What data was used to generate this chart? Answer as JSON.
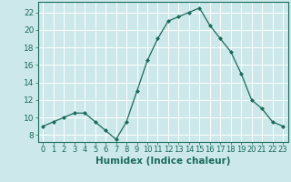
{
  "x": [
    0,
    1,
    2,
    3,
    4,
    5,
    6,
    7,
    8,
    9,
    10,
    11,
    12,
    13,
    14,
    15,
    16,
    17,
    18,
    19,
    20,
    21,
    22,
    23
  ],
  "y": [
    9,
    9.5,
    10,
    10.5,
    10.5,
    9.5,
    8.5,
    7.5,
    9.5,
    13,
    16.5,
    19,
    21,
    21.5,
    22,
    22.5,
    20.5,
    19,
    17.5,
    15,
    12,
    11,
    9.5,
    9
  ],
  "line_color": "#1a6b5a",
  "marker": "D",
  "marker_size": 2.0,
  "bg_color": "#cce8eb",
  "grid_color": "#ffffff",
  "xlabel": "Humidex (Indice chaleur)",
  "xlabel_fontsize": 7.5,
  "ylabel_ticks": [
    8,
    10,
    12,
    14,
    16,
    18,
    20,
    22
  ],
  "ylim": [
    7.2,
    23.2
  ],
  "xlim": [
    -0.5,
    23.5
  ],
  "xtick_fontsize": 6.0,
  "ytick_fontsize": 6.5,
  "tick_color": "#1a6b5a",
  "label_color": "#1a6b5a",
  "spine_color": "#1a6b5a"
}
